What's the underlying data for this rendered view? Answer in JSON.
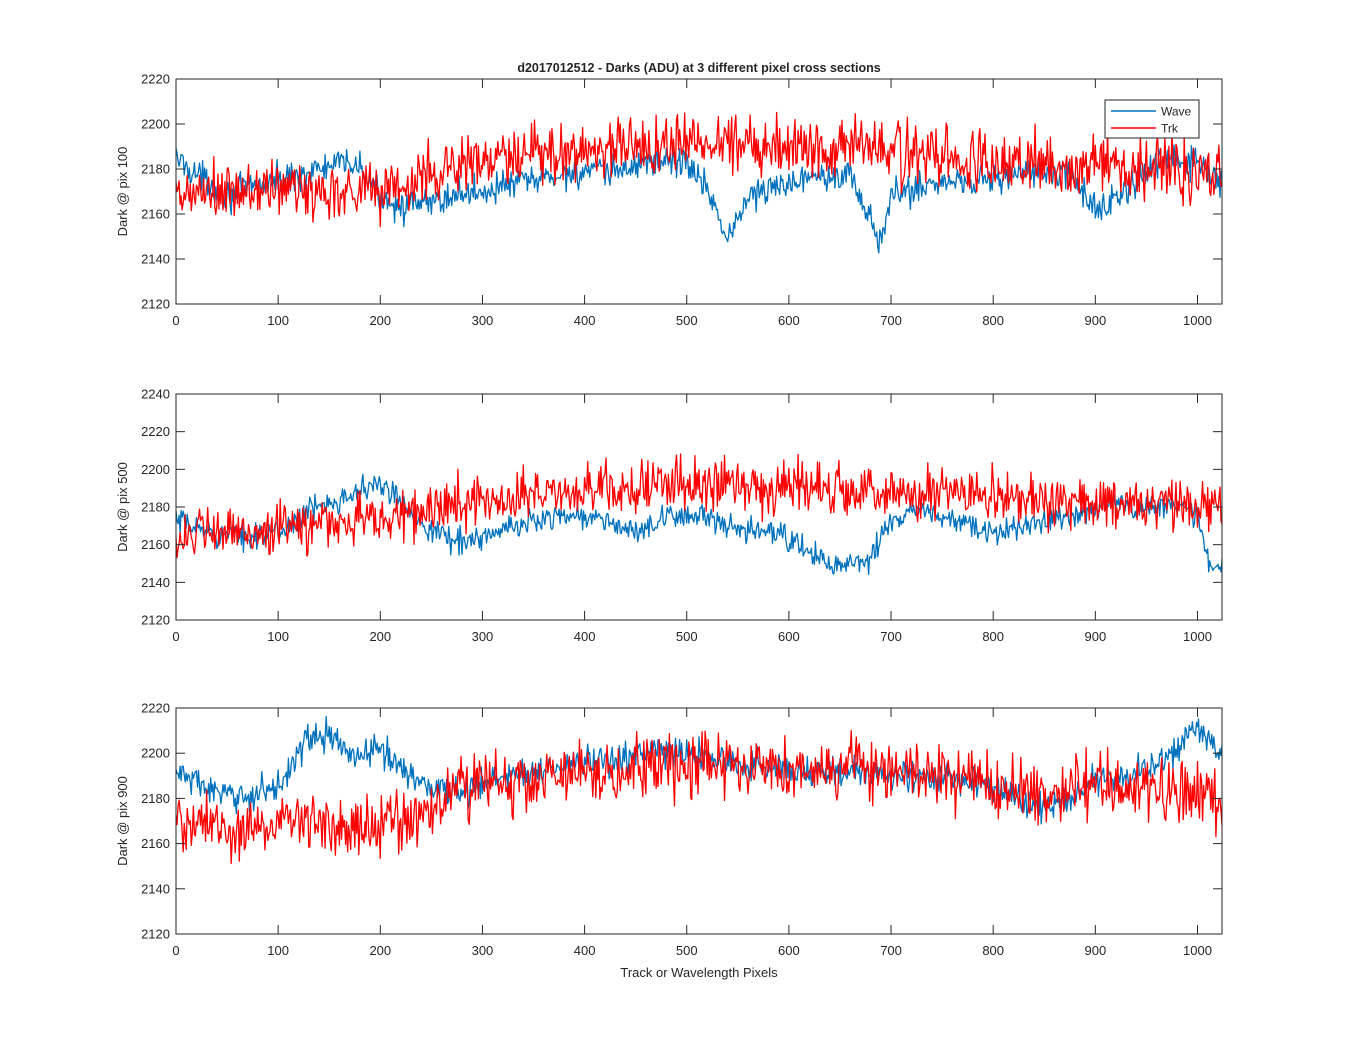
{
  "figure": {
    "title": "d2017012512 - Darks (ADU) at 3 different pixel cross sections",
    "xlabel": "Track or Wavelength Pixels"
  },
  "legend": {
    "placement": "top-right",
    "entries": [
      "Wave",
      "Trk"
    ]
  },
  "colors": {
    "wave": "#0072bd",
    "trk": "#ff0000",
    "axis": "#262626"
  },
  "chart_data": [
    {
      "type": "line",
      "ylabel": "Dark @ pix 100",
      "xlim": [
        0,
        1024
      ],
      "ylim": [
        2120,
        2220
      ],
      "xticks": [
        0,
        100,
        200,
        300,
        400,
        500,
        600,
        700,
        800,
        900,
        1000
      ],
      "yticks": [
        2120,
        2140,
        2160,
        2180,
        2200,
        2220
      ],
      "grid": false,
      "series": [
        {
          "name": "Wave",
          "x": [
            0,
            25,
            50,
            75,
            100,
            125,
            150,
            175,
            200,
            225,
            250,
            275,
            300,
            325,
            350,
            375,
            400,
            425,
            450,
            475,
            500,
            525,
            540,
            560,
            585,
            610,
            635,
            660,
            680,
            690,
            700,
            725,
            750,
            775,
            800,
            825,
            850,
            875,
            900,
            925,
            950,
            975,
            1000,
            1024
          ],
          "y": [
            2185,
            2176,
            2168,
            2172,
            2175,
            2178,
            2181,
            2183,
            2168,
            2163,
            2165,
            2169,
            2170,
            2173,
            2175,
            2177,
            2179,
            2178,
            2182,
            2184,
            2183,
            2168,
            2148,
            2168,
            2171,
            2176,
            2179,
            2177,
            2158,
            2145,
            2168,
            2172,
            2174,
            2175,
            2176,
            2178,
            2178,
            2177,
            2162,
            2168,
            2178,
            2185,
            2182,
            2172
          ]
        },
        {
          "name": "Trk",
          "x": [
            0,
            25,
            50,
            75,
            100,
            125,
            150,
            175,
            200,
            225,
            250,
            275,
            300,
            325,
            350,
            375,
            400,
            425,
            450,
            475,
            500,
            525,
            550,
            575,
            600,
            625,
            650,
            675,
            700,
            725,
            750,
            775,
            800,
            825,
            850,
            875,
            900,
            925,
            950,
            975,
            1000,
            1024
          ],
          "y": [
            2165,
            2170,
            2168,
            2170,
            2172,
            2170,
            2170,
            2172,
            2171,
            2172,
            2178,
            2182,
            2183,
            2184,
            2186,
            2187,
            2188,
            2190,
            2190,
            2191,
            2192,
            2192,
            2193,
            2192,
            2190,
            2190,
            2192,
            2190,
            2188,
            2186,
            2185,
            2184,
            2183,
            2182,
            2182,
            2181,
            2181,
            2181,
            2182,
            2181,
            2180,
            2179
          ]
        }
      ]
    },
    {
      "type": "line",
      "ylabel": "Dark @ pix 500",
      "xlim": [
        0,
        1024
      ],
      "ylim": [
        2120,
        2240
      ],
      "xticks": [
        0,
        100,
        200,
        300,
        400,
        500,
        600,
        700,
        800,
        900,
        1000
      ],
      "yticks": [
        2120,
        2140,
        2160,
        2180,
        2200,
        2220,
        2240
      ],
      "grid": false,
      "series": [
        {
          "name": "Wave",
          "x": [
            0,
            25,
            50,
            75,
            100,
            125,
            150,
            175,
            200,
            225,
            250,
            275,
            300,
            325,
            350,
            375,
            400,
            425,
            450,
            475,
            500,
            525,
            550,
            575,
            600,
            625,
            650,
            675,
            700,
            725,
            750,
            775,
            800,
            825,
            850,
            875,
            900,
            925,
            950,
            975,
            1000,
            1010,
            1024
          ],
          "y": [
            2172,
            2168,
            2165,
            2165,
            2166,
            2176,
            2183,
            2188,
            2192,
            2180,
            2168,
            2162,
            2164,
            2168,
            2173,
            2176,
            2175,
            2172,
            2166,
            2172,
            2177,
            2173,
            2166,
            2168,
            2163,
            2154,
            2148,
            2150,
            2172,
            2178,
            2175,
            2170,
            2165,
            2170,
            2173,
            2175,
            2180,
            2182,
            2180,
            2182,
            2176,
            2152,
            2145
          ]
        },
        {
          "name": "Trk",
          "x": [
            0,
            25,
            50,
            75,
            100,
            125,
            150,
            175,
            200,
            225,
            250,
            275,
            300,
            325,
            350,
            375,
            400,
            425,
            450,
            475,
            500,
            525,
            550,
            575,
            600,
            625,
            650,
            675,
            700,
            725,
            750,
            775,
            800,
            825,
            850,
            875,
            900,
            925,
            950,
            975,
            1000,
            1024
          ],
          "y": [
            2165,
            2165,
            2166,
            2167,
            2168,
            2170,
            2172,
            2173,
            2174,
            2176,
            2178,
            2182,
            2184,
            2185,
            2186,
            2188,
            2189,
            2190,
            2190,
            2191,
            2192,
            2193,
            2193,
            2192,
            2191,
            2190,
            2190,
            2189,
            2188,
            2187,
            2186,
            2185,
            2184,
            2183,
            2183,
            2182,
            2182,
            2181,
            2181,
            2180,
            2180,
            2179
          ]
        }
      ]
    },
    {
      "type": "line",
      "ylabel": "Dark @ pix 900",
      "xlim": [
        0,
        1024
      ],
      "ylim": [
        2120,
        2220
      ],
      "xticks": [
        0,
        100,
        200,
        300,
        400,
        500,
        600,
        700,
        800,
        900,
        1000
      ],
      "yticks": [
        2120,
        2140,
        2160,
        2180,
        2200,
        2220
      ],
      "grid": false,
      "series": [
        {
          "name": "Wave",
          "x": [
            0,
            25,
            50,
            75,
            100,
            125,
            150,
            175,
            200,
            225,
            250,
            275,
            300,
            325,
            350,
            375,
            400,
            425,
            450,
            475,
            500,
            525,
            550,
            575,
            600,
            625,
            650,
            675,
            700,
            725,
            750,
            775,
            800,
            825,
            850,
            875,
            900,
            925,
            950,
            975,
            1000,
            1024
          ],
          "y": [
            2192,
            2186,
            2180,
            2182,
            2185,
            2205,
            2208,
            2198,
            2202,
            2192,
            2185,
            2183,
            2186,
            2190,
            2192,
            2194,
            2196,
            2197,
            2199,
            2201,
            2200,
            2198,
            2195,
            2194,
            2193,
            2192,
            2192,
            2191,
            2190,
            2190,
            2189,
            2188,
            2185,
            2180,
            2175,
            2180,
            2188,
            2190,
            2192,
            2200,
            2212,
            2198
          ]
        },
        {
          "name": "Trk",
          "x": [
            0,
            25,
            50,
            75,
            100,
            125,
            150,
            175,
            200,
            225,
            250,
            275,
            300,
            325,
            350,
            375,
            400,
            425,
            450,
            475,
            500,
            525,
            550,
            575,
            600,
            625,
            650,
            675,
            700,
            725,
            750,
            775,
            800,
            825,
            850,
            875,
            900,
            925,
            950,
            975,
            1000,
            1024
          ],
          "y": [
            2170,
            2168,
            2165,
            2167,
            2170,
            2171,
            2170,
            2169,
            2168,
            2170,
            2175,
            2184,
            2186,
            2187,
            2188,
            2189,
            2190,
            2191,
            2192,
            2194,
            2196,
            2197,
            2196,
            2195,
            2194,
            2193,
            2193,
            2192,
            2191,
            2190,
            2189,
            2188,
            2186,
            2184,
            2182,
            2184,
            2186,
            2187,
            2186,
            2184,
            2182,
            2180
          ]
        }
      ]
    }
  ]
}
